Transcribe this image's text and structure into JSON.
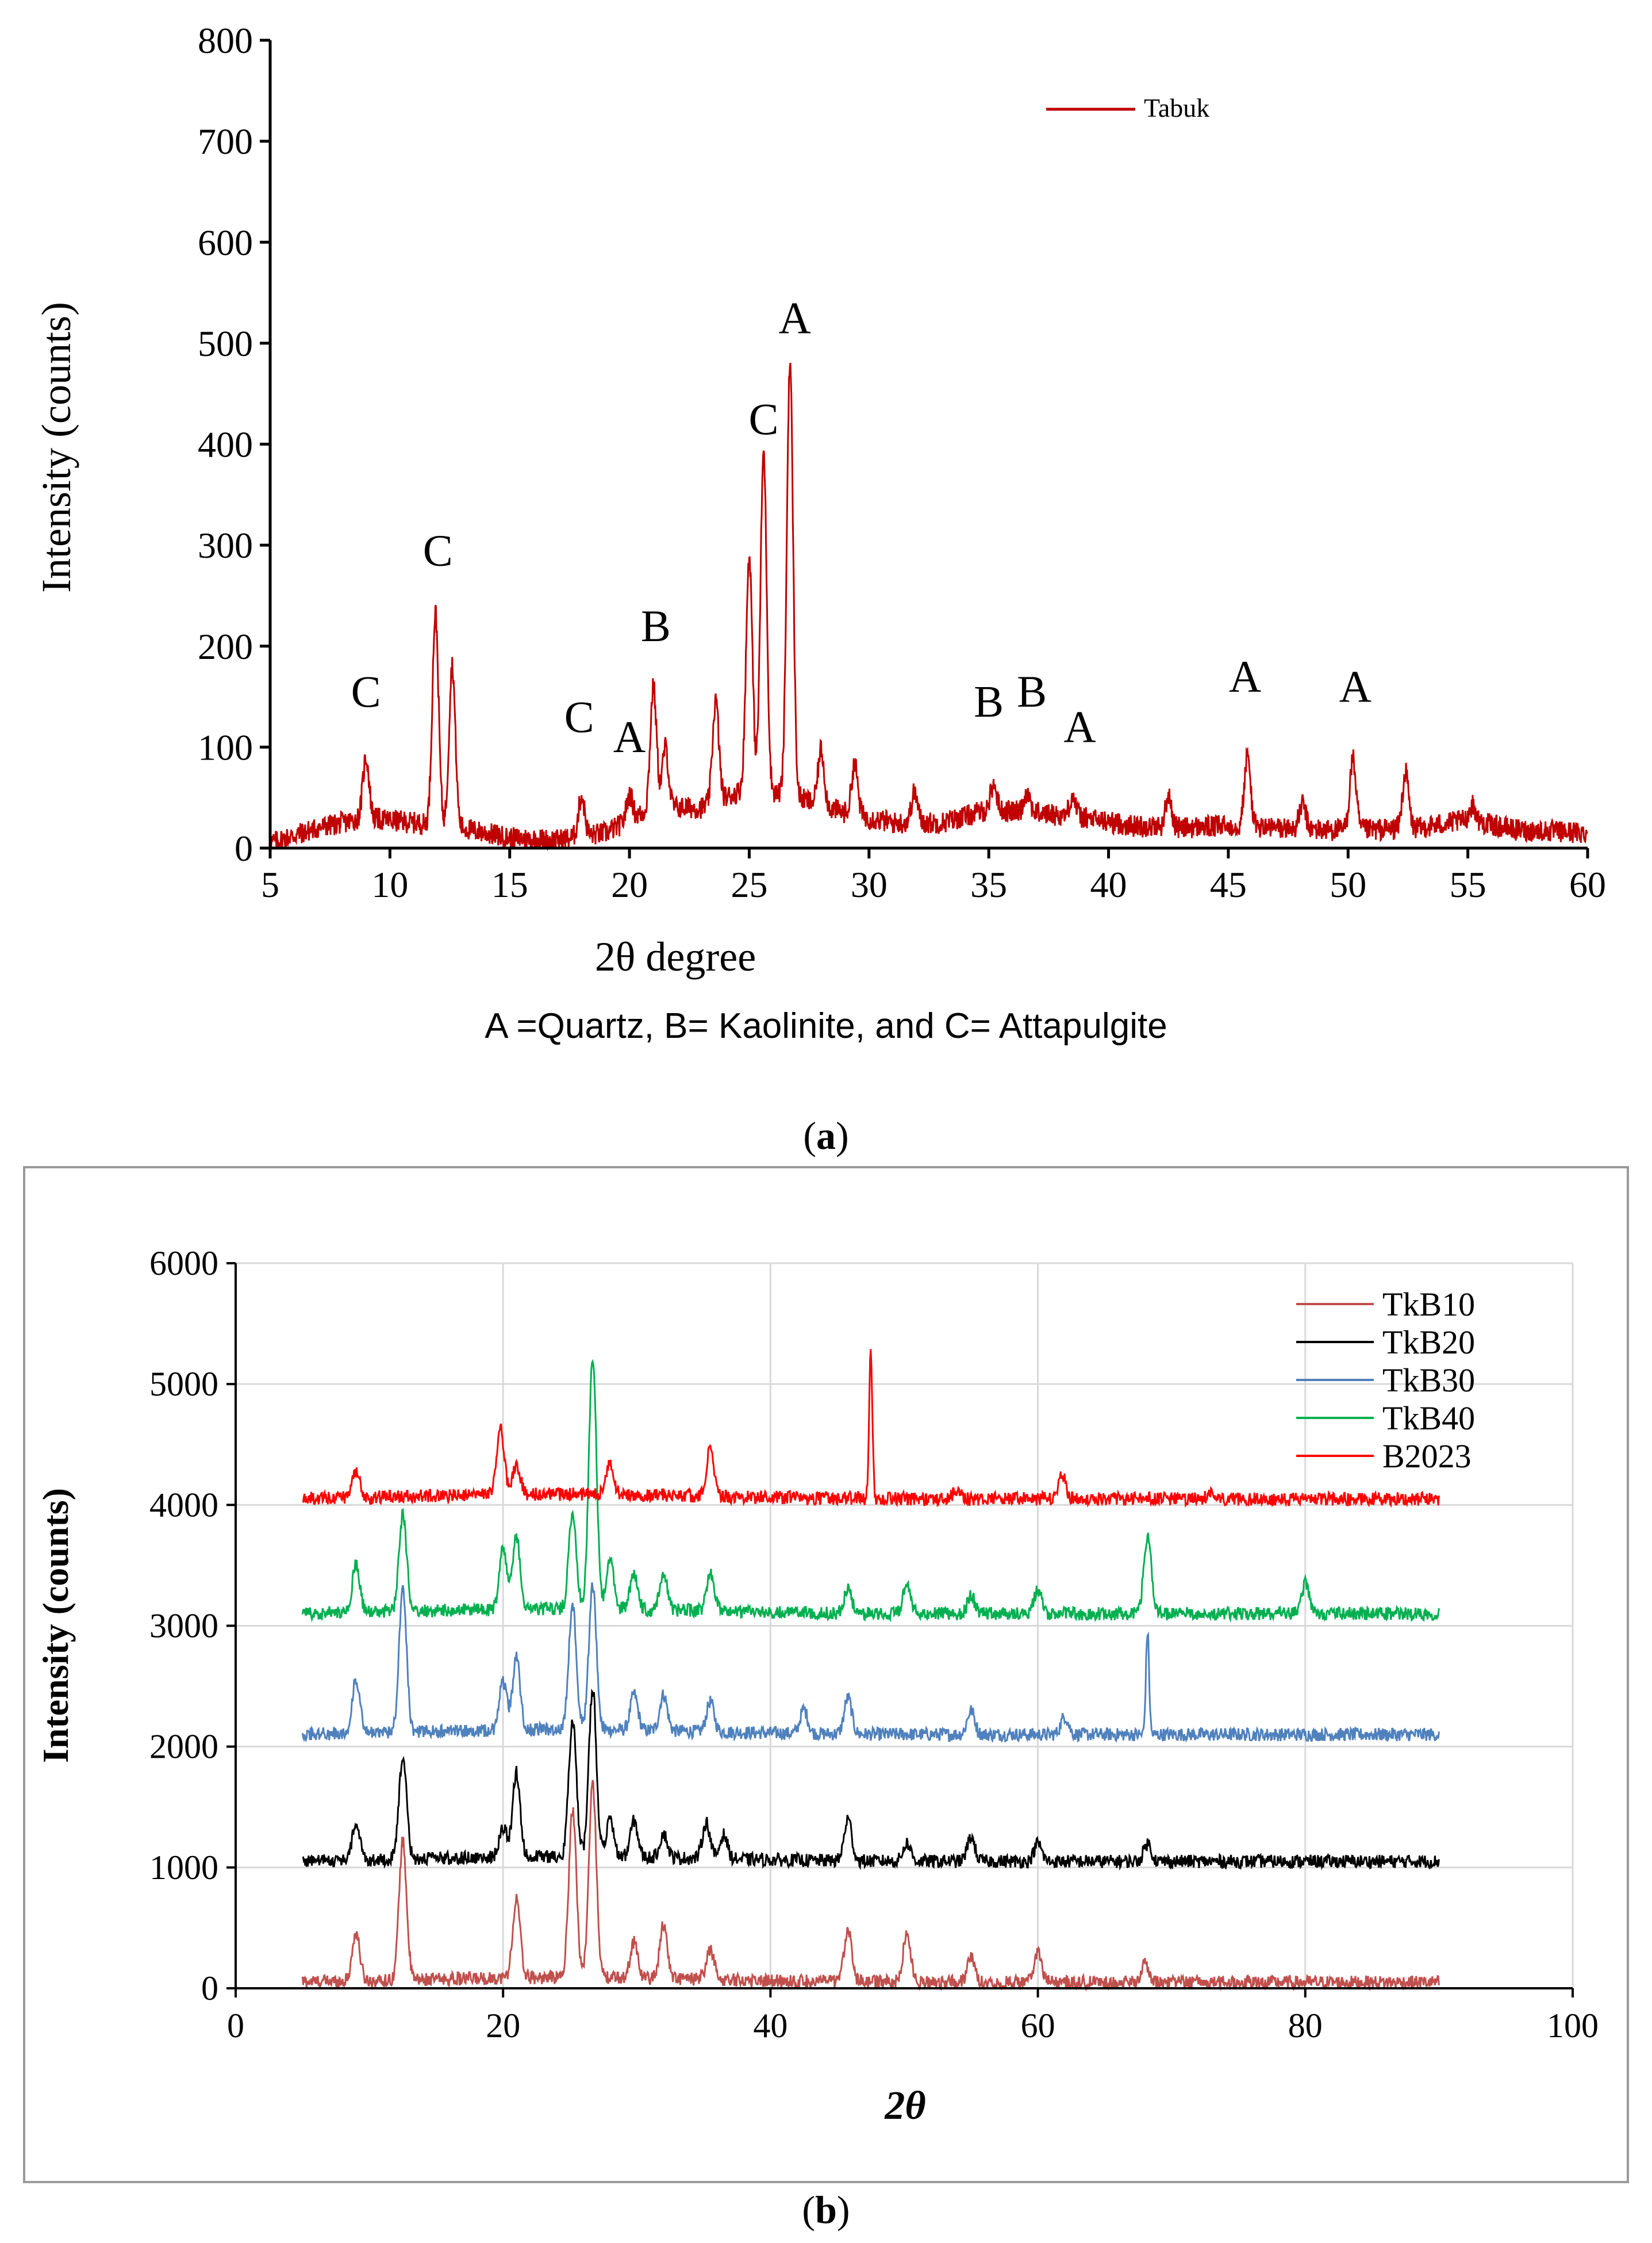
{
  "chart_data": [
    {
      "type": "line",
      "panel_label": "a",
      "title": "",
      "xlabel": "2θ degree",
      "ylabel": "Intensity (counts)",
      "xlim": [
        5,
        60
      ],
      "ylim": [
        0,
        800
      ],
      "xticks": [
        5,
        10,
        15,
        20,
        25,
        30,
        35,
        40,
        45,
        50,
        55,
        60
      ],
      "yticks": [
        0,
        100,
        200,
        300,
        400,
        500,
        600,
        700,
        800
      ],
      "grid": false,
      "legend_position": "top-right",
      "caption": "A =Quartz, B= Kaolinite, and C= Attapulgite",
      "series": [
        {
          "name": "Tabuk",
          "color": "#c00000",
          "baseline": [
            [
              5,
              5
            ],
            [
              7,
              20
            ],
            [
              9,
              30
            ],
            [
              11,
              25
            ],
            [
              13,
              20
            ],
            [
              15,
              10
            ],
            [
              17,
              8
            ],
            [
              19,
              15
            ],
            [
              21,
              40
            ],
            [
              23,
              40
            ],
            [
              25,
              60
            ],
            [
              27,
              50
            ],
            [
              29,
              35
            ],
            [
              31,
              25
            ],
            [
              33,
              25
            ],
            [
              35,
              38
            ],
            [
              37,
              35
            ],
            [
              39,
              30
            ],
            [
              41,
              22
            ],
            [
              43,
              20
            ],
            [
              45,
              22
            ],
            [
              47,
              20
            ],
            [
              49,
              18
            ],
            [
              51,
              18
            ],
            [
              53,
              20
            ],
            [
              55,
              28
            ],
            [
              57,
              18
            ],
            [
              60,
              15
            ]
          ],
          "peaks": [
            [
              9.0,
              60
            ],
            [
              11.9,
              210
            ],
            [
              12.6,
              160
            ],
            [
              18.0,
              40
            ],
            [
              20.0,
              25
            ],
            [
              21.0,
              120
            ],
            [
              21.5,
              60
            ],
            [
              23.6,
              100
            ],
            [
              25.0,
              230
            ],
            [
              25.6,
              335
            ],
            [
              26.7,
              430
            ],
            [
              28.0,
              55
            ],
            [
              29.4,
              50
            ],
            [
              31.9,
              30
            ],
            [
              35.2,
              25
            ],
            [
              36.6,
              20
            ],
            [
              38.5,
              20
            ],
            [
              42.5,
              30
            ],
            [
              45.8,
              70
            ],
            [
              48.1,
              25
            ],
            [
              50.2,
              70
            ],
            [
              52.4,
              55
            ],
            [
              55.2,
              15
            ]
          ]
        }
      ],
      "annotations": [
        {
          "label": "C",
          "x": 9.0,
          "y": 140
        },
        {
          "label": "C",
          "x": 12.0,
          "y": 280
        },
        {
          "label": "C",
          "x": 17.9,
          "y": 115
        },
        {
          "label": "A",
          "x": 20.0,
          "y": 95
        },
        {
          "label": "B",
          "x": 21.1,
          "y": 205
        },
        {
          "label": "C",
          "x": 25.6,
          "y": 410
        },
        {
          "label": "A",
          "x": 26.9,
          "y": 510
        },
        {
          "label": "B",
          "x": 35.0,
          "y": 130
        },
        {
          "label": "B",
          "x": 36.8,
          "y": 140
        },
        {
          "label": "A",
          "x": 38.8,
          "y": 105
        },
        {
          "label": "A",
          "x": 45.7,
          "y": 155
        },
        {
          "label": "A",
          "x": 50.3,
          "y": 145
        }
      ]
    },
    {
      "type": "line",
      "panel_label": "b",
      "title": "",
      "xlabel": "2θ",
      "ylabel": "Intensity (counts)",
      "xlim": [
        0,
        100
      ],
      "ylim": [
        0,
        6000
      ],
      "xticks": [
        0,
        20,
        40,
        60,
        80,
        100
      ],
      "yticks": [
        0,
        1000,
        2000,
        3000,
        4000,
        5000,
        6000
      ],
      "grid": true,
      "legend_position": "top-right",
      "series": [
        {
          "name": "TkB10",
          "color": "#c0504d",
          "offset": 50,
          "x_range": [
            5,
            90
          ],
          "peaks": [
            [
              9,
              400
            ],
            [
              12.5,
              1150
            ],
            [
              21,
              650
            ],
            [
              25.2,
              1400
            ],
            [
              26.7,
              1600
            ],
            [
              29.8,
              300
            ],
            [
              32,
              450
            ],
            [
              35.5,
              250
            ],
            [
              45.8,
              450
            ],
            [
              50.2,
              400
            ],
            [
              55,
              200
            ],
            [
              60,
              250
            ],
            [
              68,
              150
            ]
          ]
        },
        {
          "name": "TkB20",
          "color": "#000000",
          "offset": 1050,
          "x_range": [
            5,
            90
          ],
          "peaks": [
            [
              9,
              300
            ],
            [
              12.5,
              850
            ],
            [
              20,
              250
            ],
            [
              21,
              700
            ],
            [
              25.2,
              1150
            ],
            [
              26.7,
              1400
            ],
            [
              28,
              300
            ],
            [
              29.8,
              300
            ],
            [
              32,
              200
            ],
            [
              35.2,
              300
            ],
            [
              36.5,
              200
            ],
            [
              45.8,
              350
            ],
            [
              50.2,
              150
            ],
            [
              55,
              200
            ],
            [
              60,
              150
            ],
            [
              68.2,
              150
            ]
          ]
        },
        {
          "name": "TkB30",
          "color": "#4f81bd",
          "offset": 2100,
          "x_range": [
            5,
            90
          ],
          "peaks": [
            [
              9,
              450
            ],
            [
              12.5,
              1200
            ],
            [
              20,
              400
            ],
            [
              21,
              600
            ],
            [
              25.2,
              1050
            ],
            [
              26.7,
              1200
            ],
            [
              29.8,
              300
            ],
            [
              32,
              300
            ],
            [
              35.5,
              250
            ],
            [
              42.5,
              200
            ],
            [
              45.8,
              300
            ],
            [
              55,
              200
            ],
            [
              62,
              150
            ],
            [
              68.2,
              850
            ]
          ]
        },
        {
          "name": "TkB40",
          "color": "#00b050",
          "offset": 3100,
          "x_range": [
            5,
            90
          ],
          "peaks": [
            [
              9,
              400
            ],
            [
              12.5,
              800
            ],
            [
              20,
              500
            ],
            [
              21,
              600
            ],
            [
              25.2,
              800
            ],
            [
              26.7,
              2100
            ],
            [
              28,
              400
            ],
            [
              29.8,
              300
            ],
            [
              32,
              300
            ],
            [
              35.5,
              300
            ],
            [
              45.8,
              200
            ],
            [
              50.2,
              250
            ],
            [
              55,
              150
            ],
            [
              60,
              200
            ],
            [
              68.2,
              650
            ],
            [
              80,
              250
            ]
          ]
        },
        {
          "name": "B2023",
          "color": "#ff0000",
          "offset": 4050,
          "x_range": [
            5,
            90
          ],
          "peaks": [
            [
              9,
              200
            ],
            [
              19.8,
              550
            ],
            [
              21,
              250
            ],
            [
              28,
              250
            ],
            [
              35.5,
              400
            ],
            [
              47.5,
              1200
            ],
            [
              54,
              80
            ],
            [
              61.8,
              200
            ],
            [
              73,
              60
            ]
          ]
        }
      ]
    }
  ],
  "caption_a_label": "a",
  "caption_b_label": "b"
}
